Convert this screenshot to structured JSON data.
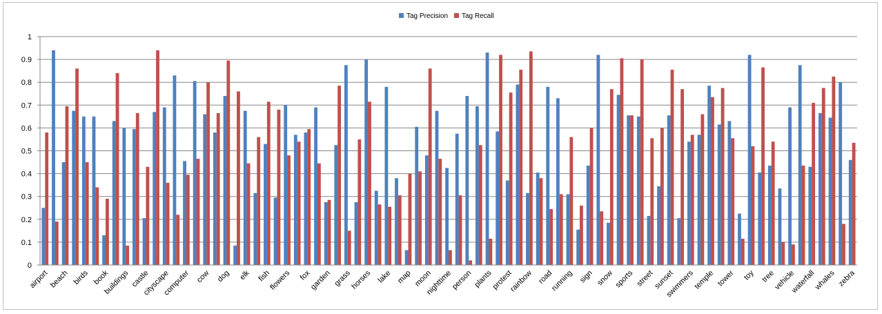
{
  "chart_data": {
    "type": "bar",
    "title": "",
    "xlabel": "",
    "ylabel": "",
    "ylim": [
      0,
      1
    ],
    "yticks": [
      "0",
      "0.1",
      "0.2",
      "0.3",
      "0.4",
      "0.5",
      "0.6",
      "0.7",
      "0.8",
      "0.9",
      "1"
    ],
    "grid": true,
    "legend_position": "top-center",
    "categories_every_other_labeled": true,
    "categories": [
      "airport",
      "",
      "beach",
      "",
      "birds",
      "",
      "book",
      "",
      "buildings",
      "",
      "castle",
      "",
      "cityscape",
      "",
      "computer",
      "",
      "cow",
      "",
      "dog",
      "",
      "elk",
      "",
      "fish",
      "",
      "flowers",
      "",
      "fox",
      "",
      "garden",
      "",
      "grass",
      "",
      "horses",
      "",
      "lake",
      "",
      "map",
      "",
      "moon",
      "",
      "nighttime",
      "",
      "person",
      "",
      "plants",
      "",
      "protest",
      "",
      "rainbow",
      "",
      "road",
      "",
      "running",
      "",
      "sign",
      "",
      "snow",
      "",
      "sports",
      "",
      "street",
      "",
      "sunset",
      "",
      "swimmers",
      "",
      "temple",
      "",
      "tower",
      "",
      "toy",
      "",
      "tree",
      "",
      "vehicle",
      "",
      "waterfall",
      "",
      "whales",
      "",
      "zebra"
    ],
    "series": [
      {
        "name": "Tag Precision",
        "color": "#4f81bd",
        "values": [
          0.25,
          0.94,
          0.45,
          0.675,
          0.65,
          0.65,
          0.13,
          0.63,
          0.6,
          0.595,
          0.205,
          0.67,
          0.69,
          0.83,
          0.455,
          0.805,
          0.66,
          0.58,
          0.74,
          0.085,
          0.675,
          0.315,
          0.53,
          0.295,
          0.7,
          0.57,
          0.58,
          0.69,
          0.275,
          0.525,
          0.875,
          0.275,
          0.9,
          0.325,
          0.78,
          0.38,
          0.065,
          0.605,
          0.48,
          0.675,
          0.425,
          0.575,
          0.74,
          0.695,
          0.93,
          0.585,
          0.37,
          0.79,
          0.315,
          0.405,
          0.78,
          0.73,
          0.31,
          0.155,
          0.435,
          0.92,
          0.185,
          0.745,
          0.655,
          0.65,
          0.215,
          0.345,
          0.655,
          0.205,
          0.54,
          0.57,
          0.785,
          0.615,
          0.63,
          0.225,
          0.92,
          0.405,
          0.435,
          0.335,
          0.69,
          0.875,
          0.43,
          0.665,
          0.645,
          0.8,
          0.46
        ]
      },
      {
        "name": "Tag Recall",
        "color": "#c0504d",
        "values": [
          0.58,
          0.19,
          0.695,
          0.86,
          0.45,
          0.34,
          0.29,
          0.84,
          0.085,
          0.665,
          0.43,
          0.94,
          0.36,
          0.22,
          0.395,
          0.465,
          0.8,
          0.665,
          0.895,
          0.76,
          0.445,
          0.56,
          0.715,
          0.68,
          0.48,
          0.54,
          0.595,
          0.445,
          0.285,
          0.785,
          0.15,
          0.55,
          0.715,
          0.265,
          0.255,
          0.305,
          0.4,
          0.41,
          0.86,
          0.465,
          0.065,
          0.305,
          0.02,
          0.525,
          0.115,
          0.92,
          0.755,
          0.855,
          0.935,
          0.38,
          0.245,
          0.31,
          0.56,
          0.26,
          0.6,
          0.235,
          0.77,
          0.905,
          0.655,
          0.9,
          0.555,
          0.6,
          0.855,
          0.77,
          0.57,
          0.66,
          0.735,
          0.775,
          0.555,
          0.115,
          0.52,
          0.865,
          0.54,
          0.1,
          0.09,
          0.435,
          0.71,
          0.775,
          0.825,
          0.18,
          0.535
        ]
      }
    ]
  }
}
